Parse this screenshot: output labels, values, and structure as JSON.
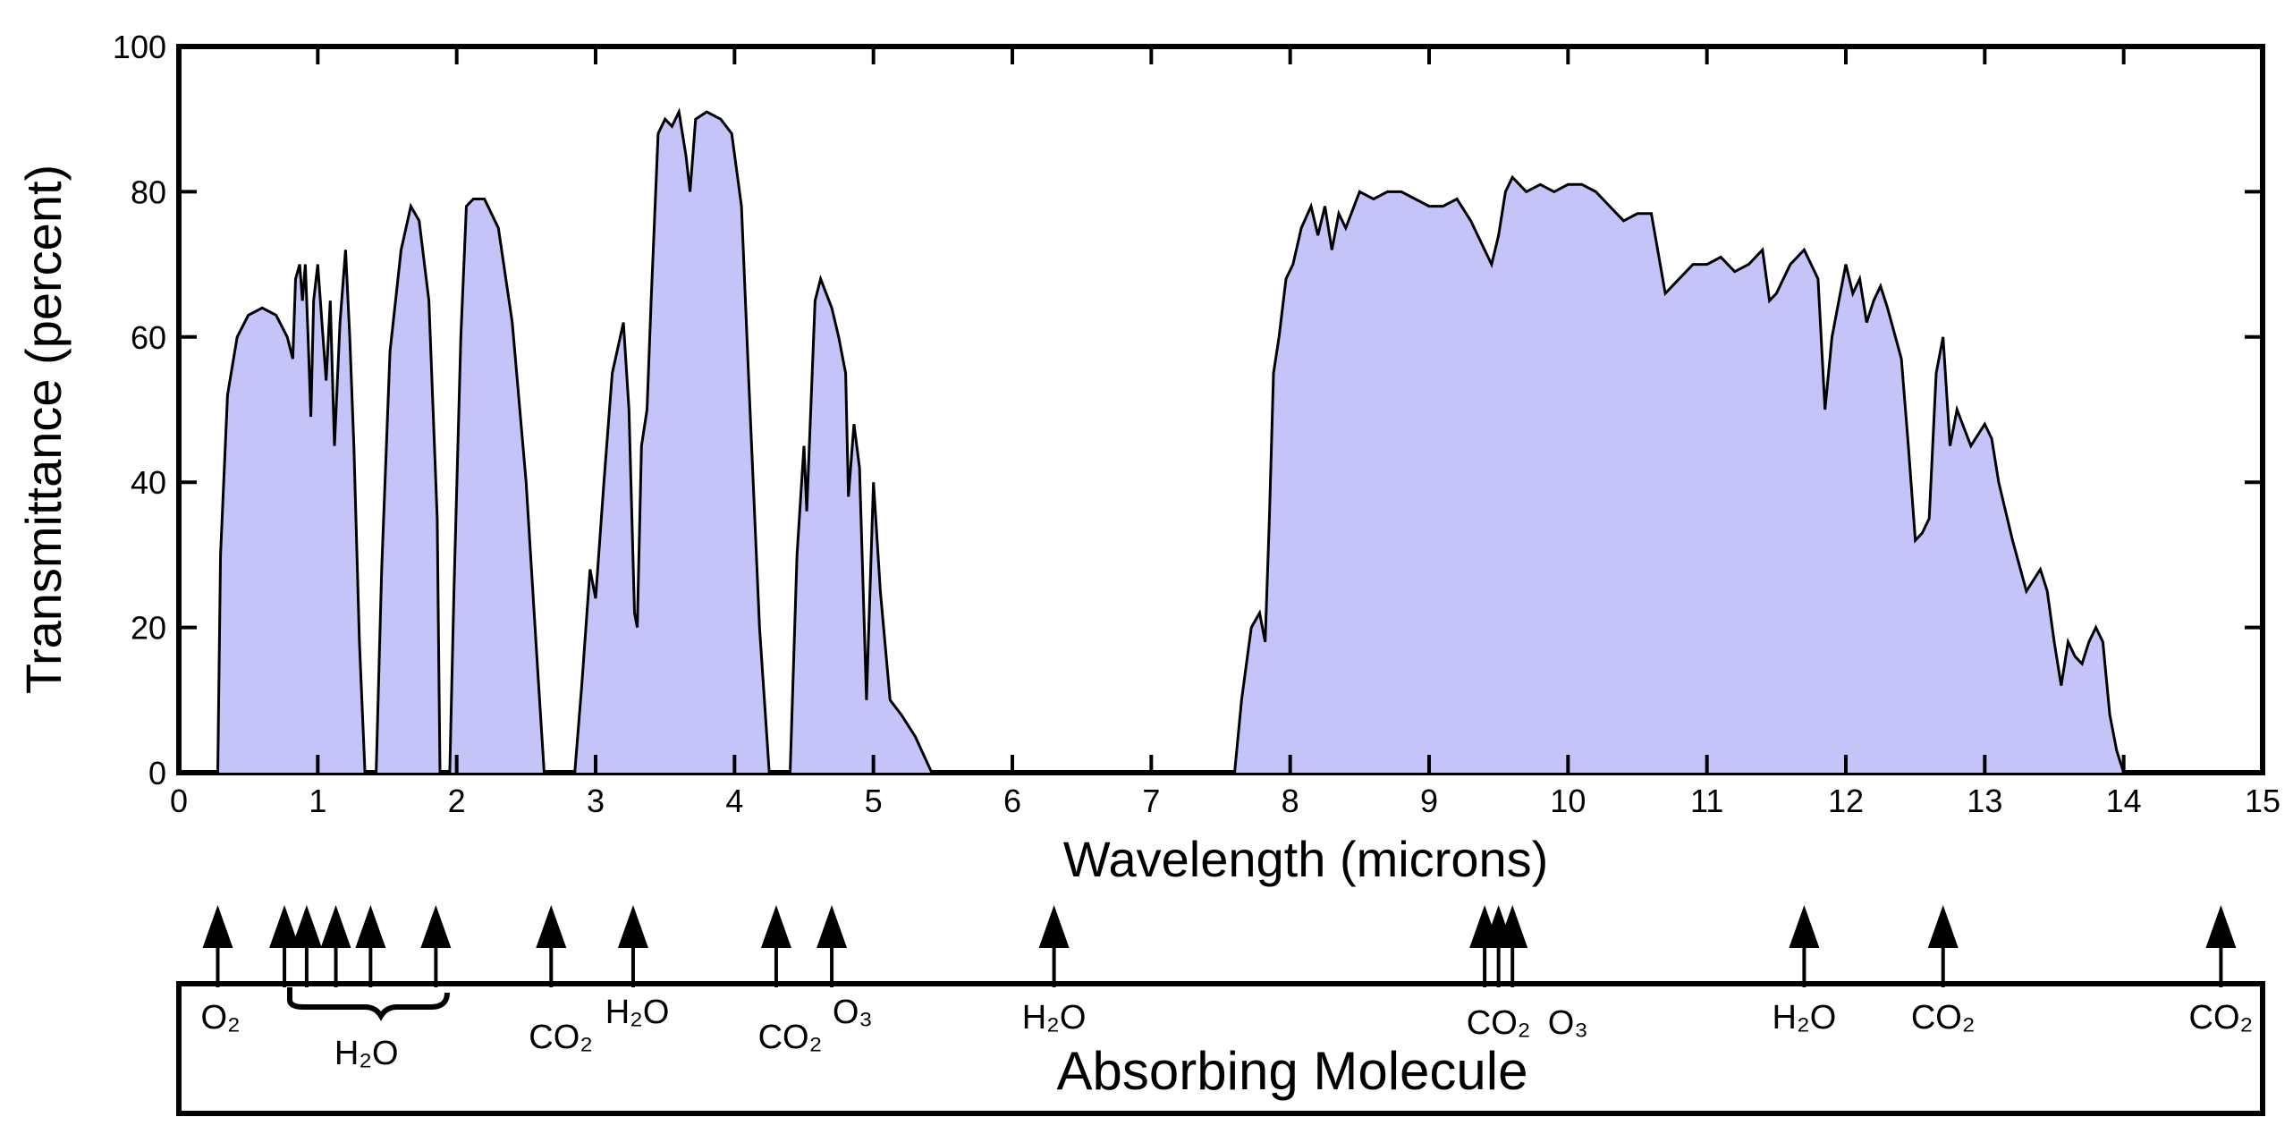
{
  "chart_data": {
    "type": "area",
    "title": "",
    "xlabel": "Wavelength (microns)",
    "ylabel": "Transmittance (percent)",
    "xlim": [
      0,
      15
    ],
    "ylim": [
      0,
      100
    ],
    "xticks": [
      "0",
      "1",
      "2",
      "3",
      "4",
      "5",
      "6",
      "7",
      "8",
      "9",
      "10",
      "11",
      "12",
      "13",
      "14",
      "15"
    ],
    "yticks": [
      "0",
      "20",
      "40",
      "60",
      "80",
      "100"
    ],
    "colors": {
      "fill": "#c4c4f8",
      "stroke": "#000000"
    },
    "series": [
      {
        "name": "Transmittance",
        "points": [
          [
            0.0,
            0
          ],
          [
            0.28,
            0
          ],
          [
            0.3,
            30
          ],
          [
            0.35,
            52
          ],
          [
            0.42,
            60
          ],
          [
            0.5,
            63
          ],
          [
            0.6,
            64
          ],
          [
            0.7,
            63
          ],
          [
            0.78,
            60
          ],
          [
            0.82,
            57
          ],
          [
            0.84,
            68
          ],
          [
            0.87,
            70
          ],
          [
            0.89,
            65
          ],
          [
            0.91,
            70
          ],
          [
            0.93,
            60
          ],
          [
            0.95,
            49
          ],
          [
            0.97,
            65
          ],
          [
            1.0,
            70
          ],
          [
            1.03,
            62
          ],
          [
            1.06,
            54
          ],
          [
            1.09,
            65
          ],
          [
            1.12,
            45
          ],
          [
            1.16,
            62
          ],
          [
            1.2,
            72
          ],
          [
            1.23,
            60
          ],
          [
            1.26,
            45
          ],
          [
            1.3,
            18
          ],
          [
            1.34,
            0
          ],
          [
            1.42,
            0
          ],
          [
            1.46,
            28
          ],
          [
            1.52,
            58
          ],
          [
            1.6,
            72
          ],
          [
            1.67,
            78
          ],
          [
            1.73,
            76
          ],
          [
            1.8,
            65
          ],
          [
            1.86,
            35
          ],
          [
            1.88,
            0
          ],
          [
            1.95,
            0
          ],
          [
            1.98,
            25
          ],
          [
            2.03,
            60
          ],
          [
            2.07,
            78
          ],
          [
            2.12,
            79
          ],
          [
            2.2,
            79
          ],
          [
            2.3,
            75
          ],
          [
            2.4,
            62
          ],
          [
            2.5,
            40
          ],
          [
            2.58,
            15
          ],
          [
            2.63,
            0
          ],
          [
            2.85,
            0
          ],
          [
            2.9,
            12
          ],
          [
            2.96,
            28
          ],
          [
            3.0,
            24
          ],
          [
            3.06,
            40
          ],
          [
            3.12,
            55
          ],
          [
            3.2,
            62
          ],
          [
            3.24,
            50
          ],
          [
            3.28,
            22
          ],
          [
            3.3,
            20
          ],
          [
            3.33,
            45
          ],
          [
            3.37,
            50
          ],
          [
            3.4,
            65
          ],
          [
            3.45,
            88
          ],
          [
            3.5,
            90
          ],
          [
            3.55,
            89
          ],
          [
            3.6,
            91
          ],
          [
            3.65,
            85
          ],
          [
            3.68,
            80
          ],
          [
            3.72,
            90
          ],
          [
            3.8,
            91
          ],
          [
            3.9,
            90
          ],
          [
            3.98,
            88
          ],
          [
            4.05,
            78
          ],
          [
            4.1,
            55
          ],
          [
            4.18,
            20
          ],
          [
            4.25,
            0
          ],
          [
            4.4,
            0
          ],
          [
            4.45,
            30
          ],
          [
            4.5,
            45
          ],
          [
            4.52,
            36
          ],
          [
            4.58,
            65
          ],
          [
            4.62,
            68
          ],
          [
            4.7,
            64
          ],
          [
            4.75,
            60
          ],
          [
            4.8,
            55
          ],
          [
            4.82,
            38
          ],
          [
            4.86,
            48
          ],
          [
            4.9,
            42
          ],
          [
            4.95,
            10
          ],
          [
            5.0,
            40
          ],
          [
            5.05,
            25
          ],
          [
            5.12,
            10
          ],
          [
            5.2,
            8
          ],
          [
            5.3,
            5
          ],
          [
            5.42,
            0
          ],
          [
            7.6,
            0
          ],
          [
            7.65,
            10
          ],
          [
            7.72,
            20
          ],
          [
            7.78,
            22
          ],
          [
            7.82,
            18
          ],
          [
            7.85,
            35
          ],
          [
            7.88,
            55
          ],
          [
            7.92,
            60
          ],
          [
            7.97,
            68
          ],
          [
            8.02,
            70
          ],
          [
            8.08,
            75
          ],
          [
            8.15,
            78
          ],
          [
            8.2,
            74
          ],
          [
            8.25,
            78
          ],
          [
            8.3,
            72
          ],
          [
            8.35,
            77
          ],
          [
            8.4,
            75
          ],
          [
            8.5,
            80
          ],
          [
            8.6,
            79
          ],
          [
            8.7,
            80
          ],
          [
            8.8,
            80
          ],
          [
            8.9,
            79
          ],
          [
            9.0,
            78
          ],
          [
            9.1,
            78
          ],
          [
            9.2,
            79
          ],
          [
            9.3,
            76
          ],
          [
            9.4,
            72
          ],
          [
            9.45,
            70
          ],
          [
            9.5,
            74
          ],
          [
            9.55,
            80
          ],
          [
            9.6,
            82
          ],
          [
            9.7,
            80
          ],
          [
            9.8,
            81
          ],
          [
            9.9,
            80
          ],
          [
            10.0,
            81
          ],
          [
            10.1,
            81
          ],
          [
            10.2,
            80
          ],
          [
            10.3,
            78
          ],
          [
            10.4,
            76
          ],
          [
            10.5,
            77
          ],
          [
            10.6,
            77
          ],
          [
            10.7,
            66
          ],
          [
            10.8,
            68
          ],
          [
            10.9,
            70
          ],
          [
            11.0,
            70
          ],
          [
            11.1,
            71
          ],
          [
            11.2,
            69
          ],
          [
            11.3,
            70
          ],
          [
            11.4,
            72
          ],
          [
            11.45,
            65
          ],
          [
            11.5,
            66
          ],
          [
            11.6,
            70
          ],
          [
            11.7,
            72
          ],
          [
            11.8,
            68
          ],
          [
            11.85,
            50
          ],
          [
            11.9,
            60
          ],
          [
            11.95,
            65
          ],
          [
            12.0,
            70
          ],
          [
            12.05,
            66
          ],
          [
            12.1,
            68
          ],
          [
            12.15,
            62
          ],
          [
            12.2,
            65
          ],
          [
            12.25,
            67
          ],
          [
            12.3,
            64
          ],
          [
            12.4,
            57
          ],
          [
            12.45,
            45
          ],
          [
            12.5,
            32
          ],
          [
            12.55,
            33
          ],
          [
            12.6,
            35
          ],
          [
            12.65,
            55
          ],
          [
            12.7,
            60
          ],
          [
            12.75,
            45
          ],
          [
            12.8,
            50
          ],
          [
            12.9,
            45
          ],
          [
            13.0,
            48
          ],
          [
            13.05,
            46
          ],
          [
            13.1,
            40
          ],
          [
            13.2,
            32
          ],
          [
            13.3,
            25
          ],
          [
            13.4,
            28
          ],
          [
            13.45,
            25
          ],
          [
            13.5,
            18
          ],
          [
            13.55,
            12
          ],
          [
            13.6,
            18
          ],
          [
            13.65,
            16
          ],
          [
            13.7,
            15
          ],
          [
            13.75,
            18
          ],
          [
            13.8,
            20
          ],
          [
            13.85,
            18
          ],
          [
            13.9,
            8
          ],
          [
            13.95,
            3
          ],
          [
            14.0,
            0
          ],
          [
            15.0,
            0
          ]
        ]
      }
    ],
    "absorbers": {
      "title": "Absorbing Molecule",
      "lines": [
        {
          "x": 0.28
        },
        {
          "x": 0.76
        },
        {
          "x": 0.92
        },
        {
          "x": 1.13
        },
        {
          "x": 1.38
        },
        {
          "x": 1.85
        },
        {
          "x": 2.68
        },
        {
          "x": 3.27
        },
        {
          "x": 4.3
        },
        {
          "x": 4.7
        },
        {
          "x": 6.3
        },
        {
          "x": 9.4
        },
        {
          "x": 9.5
        },
        {
          "x": 9.6
        },
        {
          "x": 11.7
        },
        {
          "x": 12.7
        },
        {
          "x": 14.7
        }
      ],
      "labels": [
        {
          "text": "O₂",
          "x": 0.3
        },
        {
          "text": "H₂O",
          "x": 1.35
        },
        {
          "text": "CO₂",
          "x": 2.75
        },
        {
          "text": "H₂O",
          "x": 3.3
        },
        {
          "text": "CO₂",
          "x": 4.4
        },
        {
          "text": "O₃",
          "x": 4.85
        },
        {
          "text": "H₂O",
          "x": 6.3
        },
        {
          "text": "CO₂",
          "x": 9.5
        },
        {
          "text": "O₃",
          "x": 10.0
        },
        {
          "text": "H₂O",
          "x": 11.7
        },
        {
          "text": "CO₂",
          "x": 12.7
        },
        {
          "text": "CO₂",
          "x": 14.7
        }
      ]
    }
  }
}
